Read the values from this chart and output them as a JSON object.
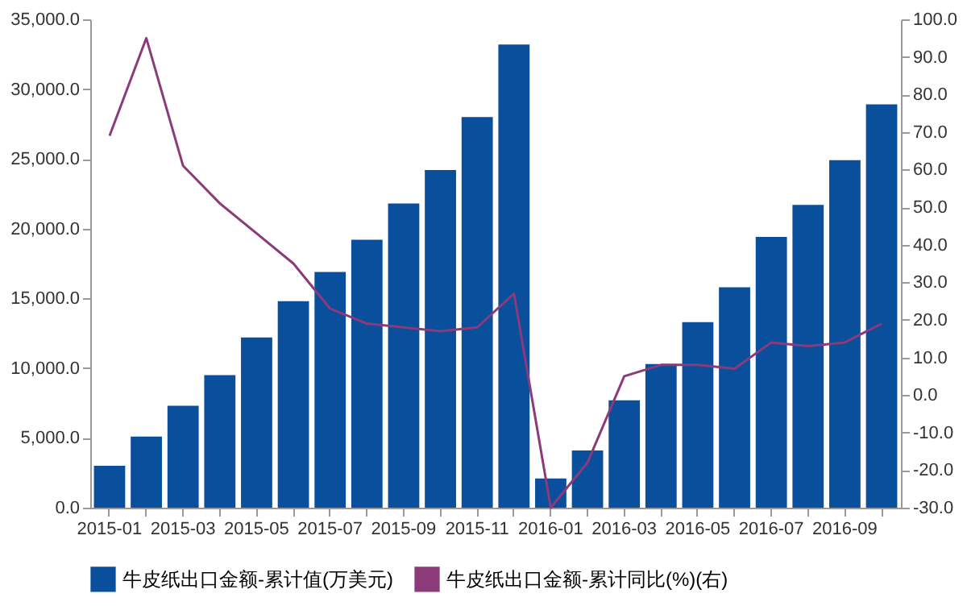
{
  "chart_data": {
    "type": "bar",
    "categories": [
      "2015-01",
      null,
      "2015-03",
      null,
      "2015-05",
      null,
      "2015-07",
      null,
      "2015-09",
      null,
      "2015-11",
      null,
      "2016-01",
      null,
      "2016-03",
      null,
      "2016-05",
      null,
      "2016-07",
      null,
      "2016-09",
      null
    ],
    "series": [
      {
        "name": "牛皮纸出口金额-累计值(万美元)",
        "color": "#0a4f9c",
        "values": [
          3000,
          5100,
          7300,
          9500,
          12200,
          14800,
          16900,
          19200,
          21800,
          24200,
          28000,
          33200,
          2100,
          4100,
          7700,
          10300,
          13300,
          15800,
          19400,
          21700,
          24900,
          28900
        ]
      },
      {
        "name": "牛皮纸出口金额-累计同比(%)(右)",
        "type": "line",
        "axis": "y2",
        "color": "#8b3a7a",
        "values": [
          69,
          95,
          61,
          51,
          43,
          35,
          23,
          19,
          18,
          17,
          18,
          27,
          -30,
          -18,
          5,
          8,
          8,
          7,
          14,
          13,
          14,
          19
        ]
      }
    ],
    "ylim": [
      0,
      35000
    ],
    "yticks": [
      {
        "value": 0,
        "label": "0.0"
      },
      {
        "value": 5000,
        "label": "5,000.0"
      },
      {
        "value": 10000,
        "label": "10,000.0"
      },
      {
        "value": 15000,
        "label": "15,000.0"
      },
      {
        "value": 20000,
        "label": "20,000.0"
      },
      {
        "value": 25000,
        "label": "25,000.0"
      },
      {
        "value": 30000,
        "label": "30,000.0"
      },
      {
        "value": 35000,
        "label": "35,000.0"
      }
    ],
    "y2lim": [
      -30,
      100
    ],
    "y2ticks": [
      {
        "value": -30,
        "label": "-30.0"
      },
      {
        "value": -20,
        "label": "-20.0"
      },
      {
        "value": -10,
        "label": "-10.0"
      },
      {
        "value": 0,
        "label": "0.0"
      },
      {
        "value": 10,
        "label": "10.0"
      },
      {
        "value": 20,
        "label": "20.0"
      },
      {
        "value": 30,
        "label": "30.0"
      },
      {
        "value": 40,
        "label": "40.0"
      },
      {
        "value": 50,
        "label": "50.0"
      },
      {
        "value": 60,
        "label": "60.0"
      },
      {
        "value": 70,
        "label": "70.0"
      },
      {
        "value": 80,
        "label": "80.0"
      },
      {
        "value": 90,
        "label": "90.0"
      },
      {
        "value": 100,
        "label": "100.0"
      }
    ],
    "grid": false,
    "legend": "bottom"
  }
}
